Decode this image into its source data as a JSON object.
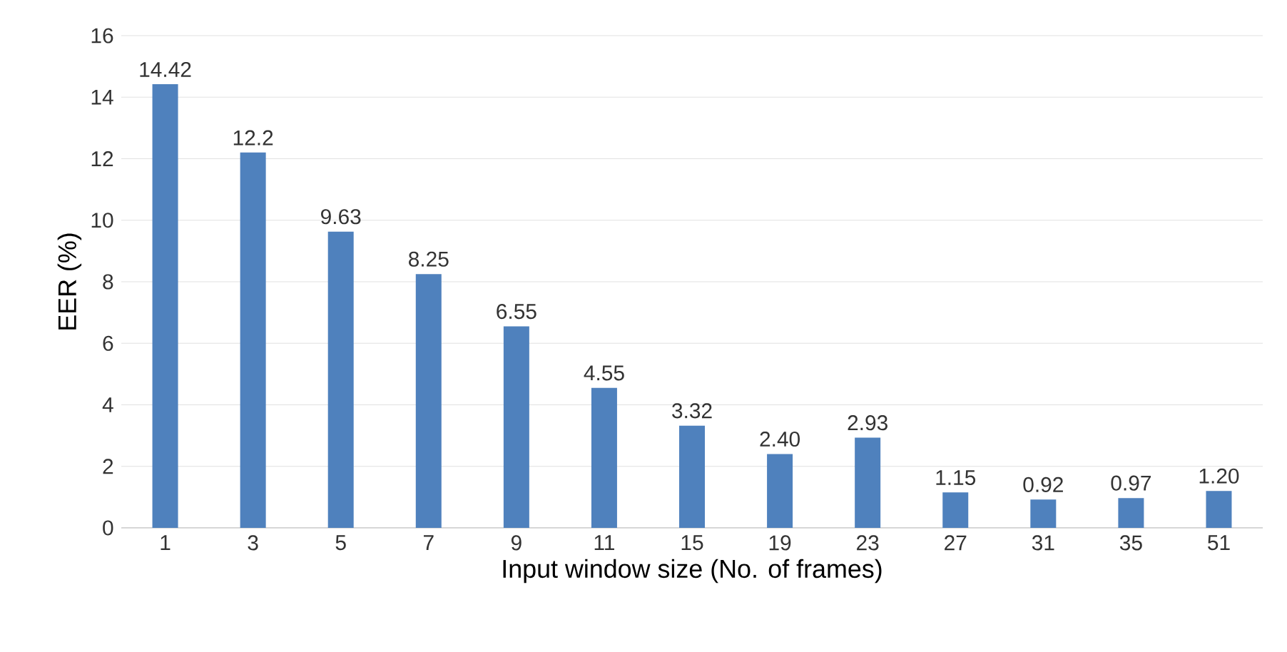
{
  "chart_data": {
    "type": "bar",
    "xlabel": "Input window size (No. of frames)",
    "ylabel": "EER (%)",
    "categories": [
      "1",
      "3",
      "5",
      "7",
      "9",
      "11",
      "15",
      "19",
      "23",
      "27",
      "31",
      "35",
      "51"
    ],
    "values": [
      14.42,
      12.2,
      9.63,
      8.25,
      6.55,
      4.55,
      3.32,
      2.4,
      2.93,
      1.15,
      0.92,
      0.97,
      1.2
    ],
    "value_labels": [
      "14.42",
      "12.2",
      "9.63",
      "8.25",
      "6.55",
      "4.55",
      "3.32",
      "2.40",
      "2.93",
      "1.15",
      "0.92",
      "0.97",
      "1.20"
    ],
    "color": "#4f81bd",
    "ylim": [
      0,
      16
    ],
    "yticks": [
      0,
      2,
      4,
      6,
      8,
      10,
      12,
      14,
      16
    ],
    "grid": "y"
  }
}
